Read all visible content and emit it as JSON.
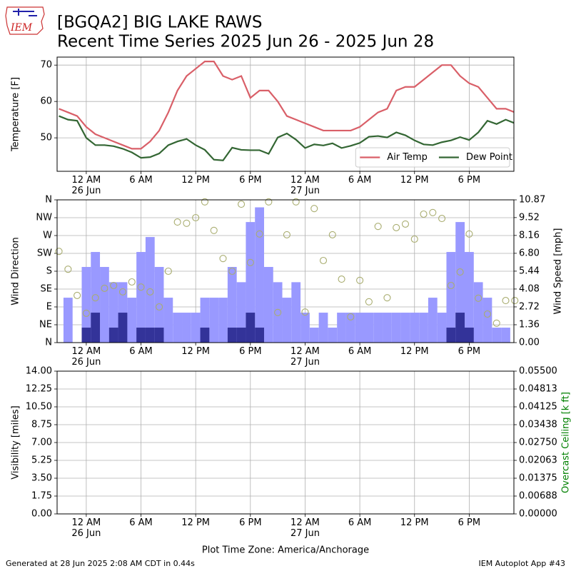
{
  "header": {
    "title": [
      "[BGQA2] BIG LAKE RAWS",
      "Recent Time Series 2025 Jun 26 - 2025 Jun 28"
    ]
  },
  "logo_text": "IEM",
  "footer": {
    "left": "Generated at 28 Jun 2025 2:08 AM CDT in 0.44s",
    "right": "IEM Autoplot App #43"
  },
  "chart_data": [
    {
      "type": "line",
      "ylabel": "Temperature [F]",
      "grid": true,
      "legend": "lower right",
      "x": [
        -3,
        -2,
        -1,
        0,
        1,
        2,
        3,
        4,
        5,
        6,
        7,
        8,
        9,
        10,
        11,
        12,
        13,
        14,
        15,
        16,
        17,
        18,
        19,
        20,
        21,
        22,
        23,
        24,
        25,
        26,
        27,
        28,
        29,
        30,
        31,
        32,
        33,
        34,
        35,
        36,
        37,
        38,
        39,
        40,
        41,
        42,
        43,
        44,
        45,
        46,
        47
      ],
      "xlim": [
        -3.2,
        46.9
      ],
      "xticks": [
        {
          "value": 0,
          "label": "12 AM\n26 Jun"
        },
        {
          "value": 6,
          "label": "6 AM"
        },
        {
          "value": 12,
          "label": "12 PM"
        },
        {
          "value": 18,
          "label": "6 PM"
        },
        {
          "value": 24,
          "label": "12 AM\n27 Jun"
        },
        {
          "value": 30,
          "label": "6 AM"
        },
        {
          "value": 36,
          "label": "12 PM"
        },
        {
          "value": 42,
          "label": "6 PM"
        }
      ],
      "ylim": [
        40.8,
        72.2
      ],
      "yticks": [
        50,
        60,
        70
      ],
      "series": [
        {
          "name": "Air Temp",
          "color": "#d95f68",
          "values": [
            58,
            57,
            56,
            53,
            51,
            50,
            49,
            48,
            47,
            47,
            49,
            52,
            57,
            63,
            67,
            69,
            71,
            71,
            67,
            66,
            67,
            61,
            63,
            63,
            60,
            56,
            55,
            54,
            53,
            52,
            52,
            52,
            52,
            53,
            55,
            57,
            58,
            63,
            64,
            64,
            66,
            68,
            70,
            70,
            67,
            65,
            64,
            61,
            58,
            58,
            57
          ]
        },
        {
          "name": "Dew Point",
          "color": "#336633",
          "values": [
            56,
            55,
            54.7,
            50,
            48,
            48,
            47.7,
            47,
            46,
            44.5,
            44.7,
            45.7,
            48,
            49,
            49.7,
            48,
            46.7,
            44,
            43.8,
            47.3,
            46.7,
            46.6,
            46.6,
            45.6,
            50.1,
            51.2,
            49.5,
            47.2,
            48.2,
            47.9,
            48.5,
            47.2,
            47.8,
            48.6,
            50.3,
            50.5,
            50.1,
            51.5,
            50.7,
            49.3,
            48.2,
            48,
            48.8,
            49.3,
            50.2,
            49.4,
            51.5,
            54.7,
            53.8,
            55,
            54
          ]
        }
      ]
    },
    {
      "type": "combo",
      "ylabel": "Wind Direction",
      "y2label": "Wind Speed [mph]",
      "grid": true,
      "x": [
        -3,
        -2,
        -1,
        0,
        1,
        2,
        3,
        4,
        5,
        6,
        7,
        8,
        9,
        10,
        11,
        12,
        13,
        14,
        15,
        16,
        17,
        18,
        19,
        20,
        21,
        22,
        23,
        24,
        25,
        26,
        27,
        28,
        29,
        30,
        31,
        32,
        33,
        34,
        35,
        36,
        37,
        38,
        39,
        40,
        41,
        42,
        43,
        44,
        45,
        46,
        47
      ],
      "xlim": [
        -3.2,
        46.9
      ],
      "xticks": [
        {
          "value": 0,
          "label": "12 AM\n26 Jun"
        },
        {
          "value": 6,
          "label": "6 AM"
        },
        {
          "value": 12,
          "label": "12 PM"
        },
        {
          "value": 18,
          "label": "6 PM"
        },
        {
          "value": 24,
          "label": "12 AM\n27 Jun"
        },
        {
          "value": 30,
          "label": "6 AM"
        },
        {
          "value": 36,
          "label": "12 PM"
        },
        {
          "value": 42,
          "label": "6 PM"
        }
      ],
      "ylim": [
        0,
        360
      ],
      "yticks": [
        {
          "value": 0,
          "label": "N"
        },
        {
          "value": 45,
          "label": "NE"
        },
        {
          "value": 90,
          "label": "E"
        },
        {
          "value": 135,
          "label": "SE"
        },
        {
          "value": 180,
          "label": "S"
        },
        {
          "value": 225,
          "label": "SW"
        },
        {
          "value": 270,
          "label": "W"
        },
        {
          "value": 315,
          "label": "NW"
        },
        {
          "value": 360,
          "label": "N"
        }
      ],
      "y2lim": [
        0,
        10.87
      ],
      "y2ticks": [
        {
          "value": 0,
          "label": "0.00"
        },
        1.36,
        2.72,
        4.08,
        5.44,
        {
          "value": 6.8,
          "label": "6.80"
        },
        8.16,
        9.52,
        10.87
      ],
      "series": [
        {
          "type": "bar",
          "axis": "y2",
          "color": "#9999ff",
          "values": [
            0,
            3.42,
            0,
            5.76,
            6.9,
            5.76,
            4.6,
            4.6,
            3.42,
            6.9,
            8.04,
            5.76,
            3.42,
            2.28,
            2.28,
            2.28,
            3.42,
            3.42,
            3.42,
            5.76,
            4.6,
            9.18,
            10.3,
            5.76,
            4.6,
            3.42,
            4.6,
            2.28,
            1.14,
            2.28,
            1.14,
            2.28,
            2.28,
            2.28,
            2.28,
            2.28,
            2.28,
            2.28,
            2.28,
            2.28,
            2.28,
            3.42,
            2.28,
            6.9,
            9.18,
            6.9,
            4.6,
            3.42,
            1.14,
            1.14,
            0
          ]
        },
        {
          "type": "bar",
          "axis": "y2",
          "color": "#333399",
          "values": [
            0,
            0,
            0,
            1.14,
            2.28,
            0,
            1.14,
            2.28,
            0,
            1.14,
            1.14,
            1.14,
            0,
            0,
            0,
            0,
            1.14,
            0,
            0,
            1.14,
            1.14,
            2.28,
            1.14,
            0,
            0,
            0,
            0,
            0,
            0,
            0,
            0,
            0,
            0,
            0,
            0,
            0,
            0,
            0,
            0,
            0,
            0,
            0,
            0,
            1.14,
            2.28,
            1.14,
            0,
            0,
            0,
            0,
            0
          ]
        },
        {
          "type": "scatter",
          "axis": "y",
          "color": "#a9ad70",
          "values": [
            230,
            185,
            119,
            74,
            113,
            137,
            144,
            128,
            153,
            140,
            128,
            90,
            180,
            304,
            301,
            315,
            355,
            283,
            212,
            180,
            349,
            202,
            274,
            355,
            76,
            272,
            355,
            77,
            338,
            207,
            272,
            160,
            65,
            157,
            103,
            293,
            113,
            290,
            299,
            261,
            324,
            328,
            313,
            144,
            178,
            274,
            112,
            72,
            49,
            106,
            106
          ]
        }
      ]
    },
    {
      "type": "line",
      "ylabel": "Visibility [miles]",
      "y2label": "Overcast Ceiling [k ft]",
      "y2label_color": "#008000",
      "grid": true,
      "xlabel": "Plot Time Zone: America/Anchorage",
      "xlim": [
        -3.2,
        46.9
      ],
      "xticks": [
        {
          "value": 0,
          "label": "12 AM\n26 Jun"
        },
        {
          "value": 6,
          "label": "6 AM"
        },
        {
          "value": 12,
          "label": "12 PM"
        },
        {
          "value": 18,
          "label": "6 PM"
        },
        {
          "value": 24,
          "label": "12 AM\n27 Jun"
        },
        {
          "value": 30,
          "label": "6 AM"
        },
        {
          "value": 36,
          "label": "12 PM"
        },
        {
          "value": 42,
          "label": "6 PM"
        }
      ],
      "ylim": [
        0,
        14
      ],
      "yticks": [
        {
          "value": 0,
          "label": "0.00"
        },
        1.75,
        {
          "value": 3.5,
          "label": "3.50"
        },
        5.25,
        {
          "value": 7,
          "label": "7.00"
        },
        8.75,
        {
          "value": 10.5,
          "label": "10.50"
        },
        12.25,
        {
          "value": 14,
          "label": "14.00"
        }
      ],
      "y2lim": [
        0,
        0.055
      ],
      "y2ticks": [
        {
          "value": 0,
          "label": "0.00000"
        },
        {
          "value": 0.006875,
          "label": "0.00688"
        },
        0.01375,
        {
          "value": 0.020625,
          "label": "0.02063"
        },
        {
          "value": 0.0275,
          "label": "0.02750"
        },
        {
          "value": 0.034375,
          "label": "0.03438"
        },
        0.04125,
        {
          "value": 0.048125,
          "label": "0.04813"
        },
        {
          "value": 0.055,
          "label": "0.05500"
        }
      ],
      "series": []
    }
  ]
}
